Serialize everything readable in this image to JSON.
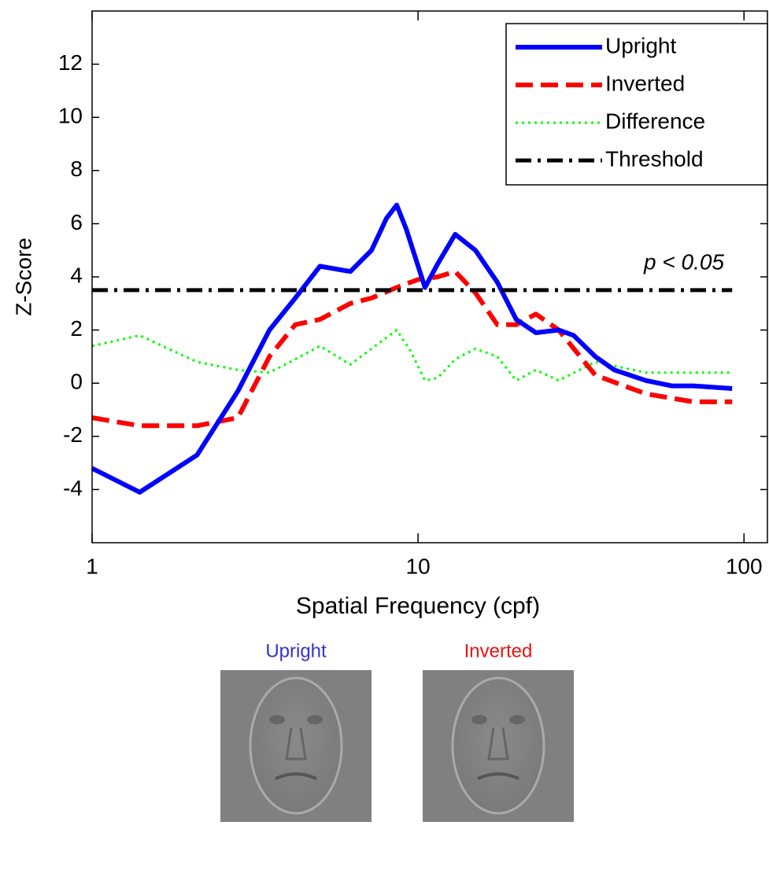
{
  "chart_data": {
    "type": "line",
    "xlabel": "Spatial Frequency (cpf)",
    "ylabel": "Z-Score",
    "xscale": "log",
    "xlim": [
      1,
      118
    ],
    "ylim": [
      -6,
      14
    ],
    "xticks": [
      1,
      10,
      100
    ],
    "yticks": [
      -4,
      -2,
      0,
      2,
      4,
      6,
      8,
      10,
      12
    ],
    "legend": "upper right",
    "series": [
      {
        "name": "Upright",
        "color": "#0000ff",
        "dash": "solid",
        "x": [
          1,
          1.4,
          2.1,
          2.8,
          3.5,
          4.2,
          5,
          6.2,
          7.2,
          8,
          8.6,
          9.2,
          10.5,
          11.5,
          13,
          15,
          17.5,
          20,
          23,
          27,
          30,
          35,
          40,
          50,
          60,
          70,
          92
        ],
        "values": [
          -3.2,
          -4.1,
          -2.7,
          -0.3,
          2.0,
          3.2,
          4.4,
          4.2,
          5.0,
          6.2,
          6.7,
          5.8,
          3.6,
          4.5,
          5.6,
          5.0,
          3.8,
          2.4,
          1.9,
          2.0,
          1.8,
          1.0,
          0.5,
          0.1,
          -0.1,
          -0.1,
          -0.2
        ]
      },
      {
        "name": "Inverted",
        "color": "#ff0000",
        "dash": "dashed",
        "x": [
          1,
          1.4,
          2.1,
          2.8,
          3.5,
          4.2,
          5,
          6.2,
          7.2,
          8.6,
          10,
          11.5,
          13,
          15,
          17.5,
          20,
          23,
          27,
          35,
          50,
          70,
          92
        ],
        "values": [
          -1.3,
          -1.6,
          -1.6,
          -1.3,
          1.0,
          2.2,
          2.4,
          3.0,
          3.2,
          3.6,
          3.9,
          4.0,
          4.2,
          3.4,
          2.2,
          2.2,
          2.6,
          2.0,
          0.3,
          -0.4,
          -0.7,
          -0.7
        ]
      },
      {
        "name": "Difference",
        "color": "#00ff00",
        "dash": "dotted",
        "x": [
          1,
          1.4,
          2.1,
          2.8,
          3.5,
          4.2,
          5,
          6.2,
          7.2,
          8.6,
          9.5,
          10.5,
          11.5,
          13,
          15,
          17.5,
          20,
          23,
          27,
          35,
          50,
          92
        ],
        "values": [
          1.4,
          1.8,
          0.8,
          0.5,
          0.4,
          0.9,
          1.4,
          0.7,
          1.3,
          2.0,
          1.2,
          0.1,
          0.2,
          0.9,
          1.3,
          1.0,
          0.1,
          0.5,
          0.1,
          0.8,
          0.4,
          0.4
        ]
      },
      {
        "name": "Threshold",
        "color": "#000000",
        "dash": "dashdot",
        "x": [
          1,
          92
        ],
        "values": [
          3.5,
          3.5
        ]
      }
    ],
    "annotation": "p < 0.05",
    "image_labels": [
      {
        "text": "Upright",
        "color": "#3333cc"
      },
      {
        "text": "Inverted",
        "color": "#ee1111"
      }
    ]
  }
}
